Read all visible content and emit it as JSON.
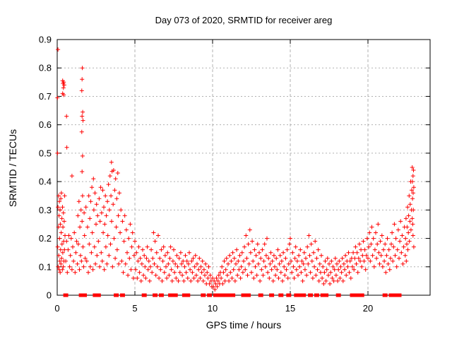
{
  "title": "Day 073 of 2020, SRMTID for receiver areg",
  "chart_data": {
    "type": "scatter",
    "title": "Day 073 of 2020, SRMTID for receiver areg",
    "xlabel": "GPS time / hours",
    "ylabel": "SRMTID / TECUs",
    "xlim": [
      0,
      24
    ],
    "ylim": [
      0,
      0.9
    ],
    "xticks": [
      0,
      5,
      10,
      15,
      20
    ],
    "yticks": [
      0,
      0.1,
      0.2,
      0.3,
      0.4,
      0.5,
      0.6,
      0.7,
      0.8,
      0.9
    ],
    "grid": true,
    "legend": "none",
    "marker": "plus",
    "marker_color": "#ff0000",
    "grid_color": "#b0b0b0",
    "border_color": "#000000",
    "zero_markers": [
      0.55,
      1.55,
      1.75,
      2.45,
      2.65,
      3.8,
      4.2,
      5.6,
      6.3,
      6.7,
      7.3,
      7.6,
      8.2,
      8.4,
      9.4,
      9.8,
      10.2,
      10.5,
      10.8,
      11.1,
      11.3,
      12.0,
      12.3,
      13.1,
      13.8,
      14.4,
      14.9,
      15.4,
      15.55,
      15.7,
      15.85,
      16.3,
      16.7,
      17.1,
      17.3,
      18.1,
      19.0,
      19.2,
      19.4,
      19.6,
      21.1,
      21.5,
      21.7,
      22.0
    ],
    "points": [
      0.05,
      0.865,
      0.35,
      0.755,
      0.42,
      0.75,
      0.38,
      0.745,
      0.45,
      0.74,
      0.4,
      0.73,
      0.35,
      0.71,
      0.42,
      0.705,
      0.02,
      0.695,
      0.6,
      0.63,
      0.62,
      0.52,
      0.02,
      0.5,
      0.95,
      0.42,
      1.62,
      0.8,
      1.6,
      0.76,
      1.58,
      0.72,
      1.64,
      0.645,
      1.6,
      0.63,
      1.66,
      0.615,
      1.58,
      0.575,
      1.63,
      0.49,
      1.6,
      0.435,
      0.03,
      0.17,
      0.05,
      0.31,
      0.06,
      0.1,
      0.08,
      0.24,
      0.09,
      0.35,
      0.1,
      0.14,
      0.12,
      0.28,
      0.13,
      0.09,
      0.14,
      0.33,
      0.15,
      0.2,
      0.17,
      0.12,
      0.18,
      0.3,
      0.19,
      0.08,
      0.2,
      0.25,
      0.22,
      0.16,
      0.23,
      0.34,
      0.24,
      0.11,
      0.26,
      0.22,
      0.27,
      0.36,
      0.28,
      0.13,
      0.3,
      0.27,
      0.31,
      0.18,
      0.33,
      0.09,
      0.34,
      0.31,
      0.36,
      0.15,
      0.37,
      0.24,
      0.39,
      0.1,
      0.4,
      0.29,
      0.42,
      0.19,
      0.43,
      0.12,
      0.45,
      0.26,
      0.47,
      0.16,
      0.48,
      0.35,
      0.5,
      0.21,
      0.55,
      0.12,
      0.6,
      0.19,
      0.65,
      0.08,
      0.7,
      0.16,
      0.75,
      0.21,
      0.8,
      0.1,
      0.85,
      0.14,
      0.9,
      0.2,
      0.95,
      0.09,
      1.0,
      0.17,
      1.05,
      0.12,
      1.1,
      0.22,
      1.15,
      0.08,
      1.2,
      0.15,
      1.25,
      0.19,
      1.3,
      0.11,
      1.33,
      0.28,
      1.36,
      0.18,
      1.4,
      0.33,
      1.43,
      0.09,
      1.46,
      0.24,
      1.5,
      0.14,
      1.53,
      0.3,
      1.56,
      0.12,
      1.6,
      0.26,
      1.63,
      0.35,
      1.66,
      0.17,
      1.7,
      0.1,
      1.73,
      0.29,
      1.76,
      0.21,
      1.8,
      0.13,
      1.85,
      0.31,
      1.9,
      0.12,
      1.95,
      0.24,
      2.0,
      0.08,
      2.03,
      0.35,
      2.06,
      0.18,
      2.1,
      0.27,
      2.13,
      0.1,
      2.16,
      0.33,
      2.2,
      0.15,
      2.23,
      0.38,
      2.26,
      0.22,
      2.3,
      0.09,
      2.33,
      0.41,
      2.36,
      0.3,
      2.4,
      0.17,
      2.43,
      0.36,
      2.46,
      0.11,
      2.5,
      0.25,
      2.53,
      0.32,
      2.56,
      0.14,
      2.6,
      0.28,
      2.65,
      0.19,
      2.7,
      0.34,
      2.73,
      0.1,
      2.76,
      0.26,
      2.8,
      0.38,
      2.83,
      0.15,
      2.86,
      0.29,
      2.9,
      0.12,
      2.93,
      0.37,
      2.96,
      0.22,
      3.0,
      0.31,
      3.03,
      0.09,
      3.06,
      0.25,
      3.1,
      0.35,
      3.13,
      0.17,
      3.16,
      0.28,
      3.2,
      0.11,
      3.23,
      0.33,
      3.26,
      0.21,
      3.3,
      0.39,
      3.33,
      0.14,
      3.36,
      0.3,
      3.4,
      0.42,
      3.43,
      0.18,
      3.46,
      0.35,
      3.49,
      0.468,
      3.5,
      0.26,
      3.53,
      0.436,
      3.56,
      0.1,
      3.6,
      0.32,
      3.63,
      0.44,
      3.66,
      0.2,
      3.7,
      0.37,
      3.73,
      0.13,
      3.76,
      0.41,
      3.8,
      0.24,
      3.83,
      0.34,
      3.86,
      0.16,
      3.9,
      0.43,
      3.93,
      0.28,
      3.96,
      0.11,
      4.0,
      0.36,
      4.05,
      0.22,
      4.1,
      0.3,
      4.15,
      0.12,
      4.2,
      0.26,
      4.25,
      0.08,
      4.3,
      0.19,
      4.35,
      0.28,
      4.4,
      0.11,
      4.45,
      0.23,
      4.5,
      0.15,
      4.55,
      0.07,
      4.6,
      0.2,
      4.65,
      0.13,
      4.7,
      0.25,
      4.75,
      0.09,
      4.8,
      0.17,
      4.85,
      0.22,
      4.9,
      0.06,
      4.95,
      0.14,
      5.0,
      0.19,
      5.05,
      0.09,
      5.1,
      0.15,
      5.15,
      0.06,
      5.2,
      0.12,
      5.25,
      0.17,
      5.3,
      0.08,
      5.35,
      0.13,
      5.4,
      0.05,
      5.45,
      0.11,
      5.5,
      0.16,
      5.55,
      0.07,
      5.6,
      0.14,
      5.65,
      0.1,
      5.7,
      0.06,
      5.75,
      0.13,
      5.8,
      0.17,
      5.85,
      0.09,
      5.9,
      0.12,
      5.95,
      0.05,
      6.0,
      0.1,
      6.05,
      0.16,
      6.1,
      0.08,
      6.15,
      0.13,
      6.2,
      0.22,
      6.25,
      0.11,
      6.3,
      0.19,
      6.35,
      0.07,
      6.4,
      0.15,
      6.45,
      0.1,
      6.5,
      0.21,
      6.55,
      0.06,
      6.6,
      0.13,
      6.65,
      0.09,
      6.7,
      0.16,
      6.75,
      0.05,
      6.8,
      0.12,
      6.85,
      0.17,
      6.9,
      0.08,
      6.95,
      0.14,
      7.0,
      0.1,
      7.05,
      0.06,
      7.1,
      0.15,
      7.15,
      0.11,
      7.2,
      0.07,
      7.25,
      0.13,
      7.3,
      0.17,
      7.35,
      0.09,
      7.4,
      0.05,
      7.45,
      0.12,
      7.5,
      0.16,
      7.55,
      0.08,
      7.6,
      0.11,
      7.65,
      0.06,
      7.7,
      0.14,
      7.75,
      0.1,
      7.8,
      0.05,
      7.85,
      0.13,
      7.9,
      0.08,
      7.95,
      0.15,
      8.0,
      0.11,
      8.05,
      0.07,
      8.1,
      0.12,
      8.15,
      0.05,
      8.2,
      0.1,
      8.25,
      0.14,
      8.3,
      0.08,
      8.35,
      0.12,
      8.4,
      0.06,
      8.45,
      0.11,
      8.5,
      0.15,
      8.55,
      0.09,
      8.6,
      0.05,
      8.65,
      0.12,
      8.7,
      0.08,
      8.75,
      0.13,
      8.8,
      0.06,
      8.85,
      0.1,
      8.9,
      0.14,
      8.95,
      0.07,
      9.0,
      0.11,
      9.05,
      0.05,
      9.1,
      0.09,
      9.15,
      0.13,
      9.2,
      0.06,
      9.25,
      0.1,
      9.3,
      0.08,
      9.35,
      0.12,
      9.4,
      0.05,
      9.45,
      0.09,
      9.5,
      0.07,
      9.55,
      0.11,
      9.6,
      0.04,
      9.65,
      0.08,
      9.7,
      0.06,
      9.75,
      0.1,
      9.8,
      0.04,
      9.85,
      0.07,
      9.9,
      0.05,
      9.95,
      0.03,
      10.0,
      0.06,
      10.05,
      0.03,
      10.1,
      0.05,
      10.15,
      0.02,
      10.2,
      0.04,
      10.25,
      0.06,
      10.3,
      0.03,
      10.35,
      0.05,
      10.4,
      0.07,
      10.45,
      0.04,
      10.5,
      0.08,
      10.55,
      0.06,
      10.6,
      0.1,
      10.65,
      0.04,
      10.7,
      0.08,
      10.75,
      0.12,
      10.8,
      0.05,
      10.85,
      0.09,
      10.9,
      0.13,
      10.95,
      0.07,
      11.0,
      0.11,
      11.05,
      0.05,
      11.1,
      0.14,
      11.15,
      0.08,
      11.2,
      0.12,
      11.25,
      0.06,
      11.3,
      0.15,
      11.35,
      0.09,
      11.4,
      0.13,
      11.45,
      0.05,
      11.5,
      0.11,
      11.55,
      0.16,
      11.6,
      0.07,
      11.65,
      0.12,
      11.7,
      0.09,
      11.75,
      0.14,
      11.8,
      0.06,
      11.85,
      0.1,
      11.9,
      0.15,
      11.95,
      0.08,
      12.0,
      0.12,
      12.05,
      0.17,
      12.1,
      0.09,
      12.15,
      0.21,
      12.2,
      0.13,
      12.25,
      0.07,
      12.3,
      0.18,
      12.35,
      0.11,
      12.4,
      0.23,
      12.45,
      0.15,
      12.5,
      0.08,
      12.55,
      0.19,
      12.6,
      0.12,
      12.65,
      0.06,
      12.7,
      0.16,
      12.75,
      0.1,
      12.8,
      0.14,
      12.85,
      0.07,
      12.9,
      0.18,
      12.95,
      0.11,
      13.0,
      0.15,
      13.05,
      0.05,
      13.1,
      0.13,
      13.15,
      0.09,
      13.2,
      0.16,
      13.25,
      0.07,
      13.3,
      0.12,
      13.35,
      0.18,
      13.4,
      0.1,
      13.45,
      0.14,
      13.5,
      0.2,
      13.55,
      0.08,
      13.6,
      0.13,
      13.65,
      0.06,
      13.7,
      0.11,
      13.75,
      0.15,
      13.8,
      0.09,
      13.85,
      0.12,
      13.9,
      0.05,
      13.95,
      0.14,
      14.0,
      0.1,
      14.05,
      0.07,
      14.1,
      0.13,
      14.15,
      0.09,
      14.2,
      0.16,
      14.25,
      0.06,
      14.3,
      0.11,
      14.35,
      0.14,
      14.4,
      0.08,
      14.45,
      0.12,
      14.5,
      0.05,
      14.55,
      0.15,
      14.6,
      0.1,
      14.65,
      0.07,
      14.7,
      0.13,
      14.75,
      0.09,
      14.8,
      0.16,
      14.85,
      0.06,
      14.9,
      0.11,
      14.95,
      0.18,
      15.0,
      0.2,
      15.05,
      0.12,
      15.1,
      0.08,
      15.15,
      0.15,
      15.2,
      0.1,
      15.25,
      0.06,
      15.3,
      0.13,
      15.35,
      0.17,
      15.4,
      0.09,
      15.45,
      0.12,
      15.5,
      0.07,
      15.55,
      0.14,
      15.6,
      0.1,
      15.65,
      0.16,
      15.7,
      0.08,
      15.75,
      0.12,
      15.8,
      0.05,
      15.85,
      0.11,
      15.9,
      0.15,
      15.95,
      0.09,
      16.0,
      0.13,
      16.05,
      0.07,
      16.1,
      0.17,
      16.15,
      0.11,
      16.2,
      0.21,
      16.25,
      0.14,
      16.3,
      0.08,
      16.35,
      0.18,
      16.4,
      0.12,
      16.45,
      0.06,
      16.5,
      0.15,
      16.55,
      0.1,
      16.6,
      0.19,
      16.65,
      0.07,
      16.7,
      0.13,
      16.75,
      0.09,
      16.8,
      0.16,
      16.85,
      0.05,
      16.9,
      0.11,
      16.95,
      0.08,
      17.0,
      0.14,
      17.05,
      0.06,
      17.1,
      0.1,
      17.15,
      0.04,
      17.2,
      0.08,
      17.25,
      0.12,
      17.3,
      0.05,
      17.35,
      0.09,
      17.4,
      0.13,
      17.45,
      0.07,
      17.5,
      0.11,
      17.55,
      0.04,
      17.6,
      0.08,
      17.65,
      0.12,
      17.7,
      0.06,
      17.75,
      0.1,
      17.8,
      0.05,
      17.85,
      0.09,
      17.9,
      0.13,
      17.95,
      0.07,
      18.0,
      0.11,
      18.05,
      0.05,
      18.1,
      0.09,
      18.15,
      0.12,
      18.2,
      0.06,
      18.25,
      0.1,
      18.3,
      0.08,
      18.35,
      0.13,
      18.4,
      0.05,
      18.45,
      0.11,
      18.5,
      0.09,
      18.55,
      0.14,
      18.6,
      0.07,
      18.65,
      0.12,
      18.7,
      0.1,
      18.75,
      0.15,
      18.8,
      0.08,
      18.85,
      0.12,
      18.9,
      0.06,
      18.95,
      0.13,
      19.0,
      0.1,
      19.05,
      0.15,
      19.1,
      0.09,
      19.15,
      0.13,
      19.2,
      0.17,
      19.25,
      0.11,
      19.3,
      0.15,
      19.35,
      0.08,
      19.4,
      0.13,
      19.45,
      0.18,
      19.5,
      0.12,
      19.55,
      0.16,
      19.6,
      0.1,
      19.65,
      0.14,
      19.7,
      0.19,
      19.75,
      0.12,
      19.8,
      0.16,
      19.85,
      0.09,
      19.9,
      0.14,
      19.95,
      0.2,
      20.0,
      0.13,
      20.05,
      0.17,
      20.1,
      0.22,
      20.15,
      0.12,
      20.2,
      0.18,
      20.25,
      0.24,
      20.3,
      0.14,
      20.35,
      0.2,
      20.4,
      0.1,
      20.45,
      0.16,
      20.5,
      0.22,
      20.55,
      0.13,
      20.6,
      0.18,
      20.65,
      0.25,
      20.7,
      0.15,
      20.75,
      0.11,
      20.8,
      0.19,
      20.85,
      0.14,
      20.9,
      0.21,
      20.95,
      0.1,
      21.0,
      0.16,
      21.05,
      0.12,
      21.1,
      0.18,
      21.15,
      0.08,
      21.2,
      0.14,
      21.25,
      0.2,
      21.3,
      0.11,
      21.35,
      0.16,
      21.4,
      0.09,
      21.45,
      0.13,
      21.5,
      0.18,
      21.55,
      0.22,
      21.6,
      0.12,
      21.65,
      0.17,
      21.7,
      0.25,
      21.75,
      0.14,
      21.8,
      0.2,
      21.85,
      0.1,
      21.9,
      0.16,
      21.95,
      0.23,
      22.0,
      0.13,
      22.05,
      0.19,
      22.1,
      0.26,
      22.15,
      0.15,
      22.2,
      0.21,
      22.25,
      0.11,
      22.3,
      0.17,
      22.35,
      0.24,
      22.4,
      0.14,
      22.42,
      0.2,
      22.45,
      0.27,
      22.47,
      0.12,
      22.5,
      0.18,
      22.52,
      0.24,
      22.55,
      0.31,
      22.57,
      0.16,
      22.6,
      0.22,
      22.62,
      0.28,
      22.65,
      0.35,
      22.67,
      0.19,
      22.7,
      0.26,
      22.72,
      0.32,
      22.75,
      0.4,
      22.77,
      0.23,
      22.8,
      0.3,
      22.82,
      0.37,
      22.85,
      0.45,
      22.85,
      0.27,
      22.87,
      0.34,
      22.9,
      0.42,
      22.9,
      0.21,
      22.92,
      0.3,
      22.95,
      0.38,
      22.95,
      0.17,
      22.88,
      0.25,
      22.93,
      0.44,
      22.86,
      0.4,
      22.91,
      0.36
    ]
  }
}
